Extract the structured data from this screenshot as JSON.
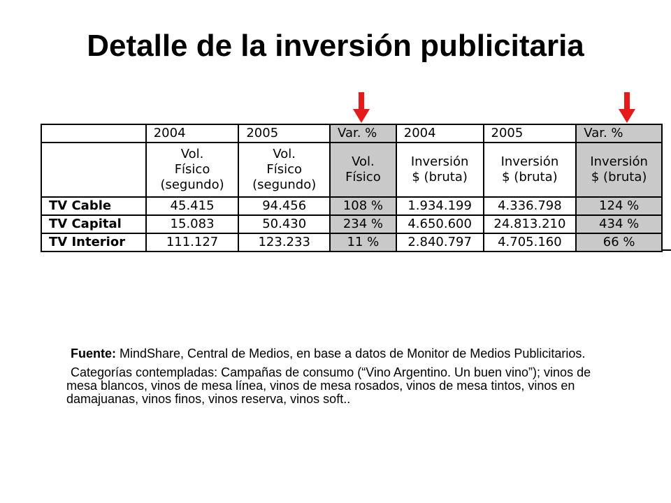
{
  "slide": {
    "title": "Detalle de la inversión publicitaria"
  },
  "markers": {
    "color": "#e31b1b",
    "icon": "down-arrow-icon",
    "count": 2
  },
  "table": {
    "highlight_color": "#c9c9c9",
    "header_row1": [
      "",
      "2004",
      "2005",
      "Var. %",
      "2004",
      "2005",
      "Var. %"
    ],
    "header_row2": [
      "",
      "Vol.\nFísico\n(segundo)",
      "Vol.\nFísico\n(segundo)",
      "Vol.\nFísico",
      "Inversión\n$ (bruta)",
      "Inversión\n$ (bruta)",
      "Inversión\n$ (bruta)"
    ],
    "rows": [
      {
        "label": "TV Cable",
        "vol_2004": "45.415",
        "vol_2005": "94.456",
        "vol_var": "108 %",
        "inv_2004": "1.934.199",
        "inv_2005": "4.336.798",
        "inv_var": "124 %"
      },
      {
        "label": "TV Capital",
        "vol_2004": "15.083",
        "vol_2005": "50.430",
        "vol_var": "234 %",
        "inv_2004": "4.650.600",
        "inv_2005": "24.813.210",
        "inv_var": "434 %"
      },
      {
        "label": "TV Interior",
        "vol_2004": "111.127",
        "vol_2005": "123.233",
        "vol_var": "11 %",
        "inv_2004": "2.840.797",
        "inv_2005": "4.705.160",
        "inv_var": "66 %"
      }
    ]
  },
  "notes": {
    "source_label": "Fuente:",
    "source_text": " MindShare, Central de Medios, en base a datos de Monitor de Medios Publicitarios.",
    "categories_text": "Categorías contempladas: Campañas de consumo (“Vino Argentino. Un buen vino”); vinos de mesa blancos, vinos de mesa línea, vinos de mesa rosados, vinos de mesa tintos, vinos en damajuanas, vinos finos, vinos reserva, vinos soft.."
  }
}
